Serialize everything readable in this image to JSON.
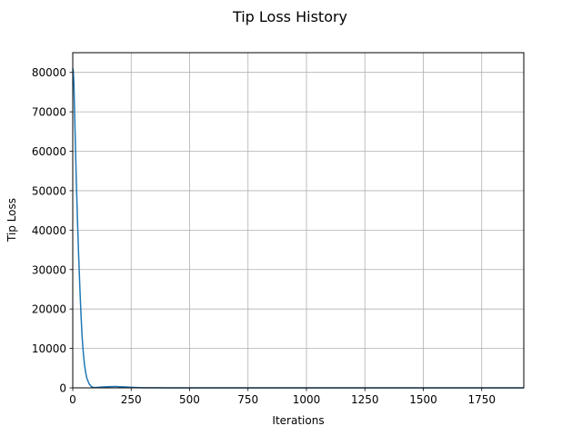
{
  "chart_data": {
    "type": "line",
    "title": "Tip Loss History",
    "xlabel": "Iterations",
    "ylabel": "Tip Loss",
    "xlim": [
      0,
      1930
    ],
    "ylim": [
      0,
      85000
    ],
    "xticks": [
      0,
      250,
      500,
      750,
      1000,
      1250,
      1500,
      1750
    ],
    "yticks": [
      0,
      10000,
      20000,
      30000,
      40000,
      50000,
      60000,
      70000,
      80000
    ],
    "grid": true,
    "series": [
      {
        "color": "#1f77b4",
        "x": [
          0,
          2,
          5,
          10,
          15,
          20,
          25,
          30,
          35,
          40,
          45,
          50,
          55,
          60,
          70,
          80,
          90,
          100,
          120,
          150,
          180,
          200,
          220,
          250,
          275,
          300,
          350,
          400,
          500,
          750,
          1000,
          1250,
          1500,
          1750,
          1930
        ],
        "y": [
          81000,
          80500,
          77000,
          65000,
          53000,
          43000,
          34000,
          26000,
          19000,
          13000,
          9000,
          6000,
          4000,
          2500,
          1000,
          300,
          100,
          80,
          200,
          300,
          350,
          300,
          250,
          150,
          80,
          40,
          15,
          5,
          2,
          1,
          1,
          1,
          1,
          1,
          1
        ]
      }
    ]
  }
}
